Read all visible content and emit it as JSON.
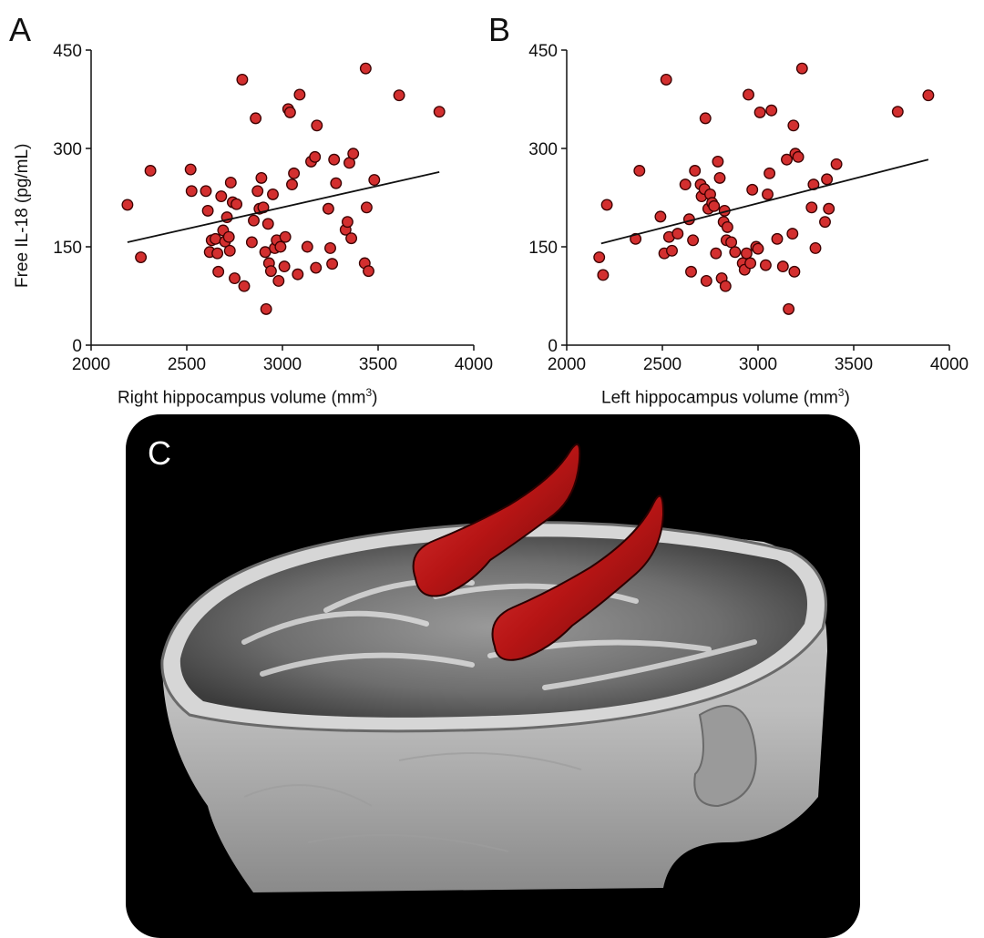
{
  "figure": {
    "panels": {
      "a": {
        "letter": "A"
      },
      "b": {
        "letter": "B"
      },
      "c": {
        "letter": "C"
      }
    },
    "ylabel": "Free IL-18 (pg/mL)"
  },
  "chart_data": [
    {
      "panel": "A",
      "type": "scatter",
      "xlabel": "Right hippocampus volume (mm",
      "xlabel_unit_sup": "3",
      "xlabel_close": ")",
      "ylabel": "Free IL-18 (pg/mL)",
      "xlim": [
        2000,
        4000
      ],
      "ylim": [
        0,
        450
      ],
      "xticks": [
        "2000",
        "2500",
        "3000",
        "3500",
        "4000"
      ],
      "yticks": [
        "0",
        "150",
        "300",
        "450"
      ],
      "marker_color": "#d32f2f",
      "marker_edge": "#3a0000",
      "trendline": {
        "x": [
          2190,
          3820
        ],
        "y": [
          157,
          264
        ]
      },
      "points": [
        [
          2190,
          214
        ],
        [
          2260,
          134
        ],
        [
          2310,
          266
        ],
        [
          2520,
          268
        ],
        [
          2525,
          235
        ],
        [
          2600,
          235
        ],
        [
          2610,
          205
        ],
        [
          2620,
          142
        ],
        [
          2630,
          160
        ],
        [
          2650,
          162
        ],
        [
          2660,
          140
        ],
        [
          2665,
          112
        ],
        [
          2680,
          227
        ],
        [
          2690,
          175
        ],
        [
          2700,
          158
        ],
        [
          2710,
          195
        ],
        [
          2720,
          165
        ],
        [
          2725,
          144
        ],
        [
          2730,
          248
        ],
        [
          2740,
          218
        ],
        [
          2750,
          102
        ],
        [
          2760,
          215
        ],
        [
          2790,
          405
        ],
        [
          2800,
          90
        ],
        [
          2840,
          157
        ],
        [
          2850,
          190
        ],
        [
          2860,
          346
        ],
        [
          2870,
          235
        ],
        [
          2880,
          208
        ],
        [
          2890,
          255
        ],
        [
          2900,
          210
        ],
        [
          2910,
          142
        ],
        [
          2915,
          55
        ],
        [
          2925,
          185
        ],
        [
          2930,
          125
        ],
        [
          2940,
          113
        ],
        [
          2950,
          230
        ],
        [
          2960,
          148
        ],
        [
          2970,
          160
        ],
        [
          2980,
          98
        ],
        [
          2990,
          150
        ],
        [
          3010,
          120
        ],
        [
          3015,
          165
        ],
        [
          3030,
          360
        ],
        [
          3040,
          355
        ],
        [
          3050,
          245
        ],
        [
          3060,
          262
        ],
        [
          3080,
          108
        ],
        [
          3090,
          382
        ],
        [
          3130,
          150
        ],
        [
          3150,
          280
        ],
        [
          3170,
          287
        ],
        [
          3175,
          118
        ],
        [
          3180,
          335
        ],
        [
          3240,
          208
        ],
        [
          3250,
          148
        ],
        [
          3260,
          124
        ],
        [
          3270,
          283
        ],
        [
          3280,
          247
        ],
        [
          3330,
          176
        ],
        [
          3340,
          188
        ],
        [
          3350,
          278
        ],
        [
          3360,
          163
        ],
        [
          3370,
          292
        ],
        [
          3430,
          125
        ],
        [
          3435,
          422
        ],
        [
          3440,
          210
        ],
        [
          3450,
          113
        ],
        [
          3480,
          252
        ],
        [
          3610,
          381
        ],
        [
          3820,
          356
        ]
      ]
    },
    {
      "panel": "B",
      "type": "scatter",
      "xlabel": "Left hippocampus volume (mm",
      "xlabel_unit_sup": "3",
      "xlabel_close": ")",
      "ylabel": "",
      "xlim": [
        2000,
        4000
      ],
      "ylim": [
        0,
        450
      ],
      "xticks": [
        "2000",
        "2500",
        "3000",
        "3500",
        "4000"
      ],
      "yticks": [
        "0",
        "150",
        "300",
        "450"
      ],
      "marker_color": "#d32f2f",
      "marker_edge": "#3a0000",
      "trendline": {
        "x": [
          2180,
          3890
        ],
        "y": [
          155,
          283
        ]
      },
      "points": [
        [
          2170,
          134
        ],
        [
          2190,
          107
        ],
        [
          2210,
          214
        ],
        [
          2360,
          162
        ],
        [
          2380,
          266
        ],
        [
          2490,
          196
        ],
        [
          2510,
          140
        ],
        [
          2520,
          405
        ],
        [
          2535,
          165
        ],
        [
          2550,
          144
        ],
        [
          2580,
          170
        ],
        [
          2620,
          245
        ],
        [
          2640,
          192
        ],
        [
          2650,
          112
        ],
        [
          2660,
          160
        ],
        [
          2670,
          266
        ],
        [
          2700,
          245
        ],
        [
          2705,
          227
        ],
        [
          2720,
          238
        ],
        [
          2725,
          346
        ],
        [
          2730,
          98
        ],
        [
          2740,
          208
        ],
        [
          2750,
          230
        ],
        [
          2760,
          217
        ],
        [
          2770,
          212
        ],
        [
          2780,
          140
        ],
        [
          2790,
          280
        ],
        [
          2800,
          255
        ],
        [
          2810,
          102
        ],
        [
          2820,
          188
        ],
        [
          2825,
          205
        ],
        [
          2830,
          90
        ],
        [
          2835,
          160
        ],
        [
          2840,
          180
        ],
        [
          2860,
          157
        ],
        [
          2880,
          142
        ],
        [
          2920,
          125
        ],
        [
          2930,
          115
        ],
        [
          2940,
          140
        ],
        [
          2950,
          382
        ],
        [
          2960,
          125
        ],
        [
          2970,
          237
        ],
        [
          2990,
          150
        ],
        [
          3000,
          147
        ],
        [
          3010,
          355
        ],
        [
          3040,
          122
        ],
        [
          3050,
          230
        ],
        [
          3060,
          262
        ],
        [
          3070,
          358
        ],
        [
          3100,
          162
        ],
        [
          3130,
          120
        ],
        [
          3150,
          283
        ],
        [
          3160,
          55
        ],
        [
          3180,
          170
        ],
        [
          3185,
          335
        ],
        [
          3190,
          112
        ],
        [
          3195,
          292
        ],
        [
          3210,
          287
        ],
        [
          3230,
          422
        ],
        [
          3280,
          210
        ],
        [
          3290,
          245
        ],
        [
          3300,
          148
        ],
        [
          3350,
          188
        ],
        [
          3360,
          253
        ],
        [
          3370,
          208
        ],
        [
          3410,
          276
        ],
        [
          3730,
          356
        ],
        [
          3890,
          381
        ]
      ]
    }
  ]
}
